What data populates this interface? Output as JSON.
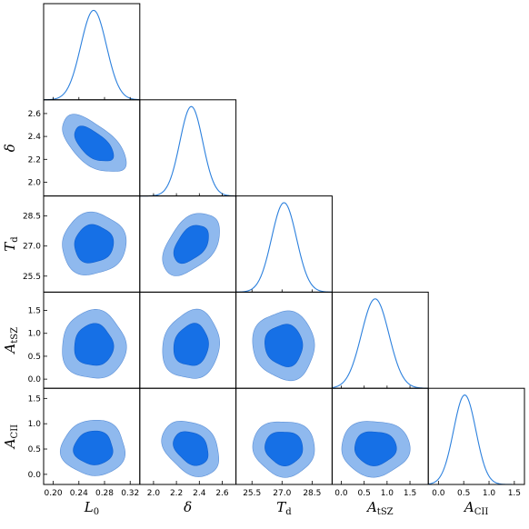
{
  "chart_data": {
    "type": "corner",
    "colors": {
      "outer": "#8fb9ee",
      "inner": "#1670e6",
      "line": "#2c80dd"
    },
    "grid": false,
    "parameters": [
      {
        "symbol": "L",
        "subscript": "0",
        "mean": 0.263,
        "sigma": 0.02,
        "range": [
          0.185,
          0.335
        ],
        "ticks": [
          0.2,
          0.24,
          0.28,
          0.32
        ],
        "tick_labels": [
          "0.20",
          "0.24",
          "0.28",
          "0.32"
        ]
      },
      {
        "symbol": "δ",
        "subscript": "",
        "mean": 2.33,
        "sigma": 0.1,
        "range": [
          1.88,
          2.72
        ],
        "ticks": [
          2.0,
          2.2,
          2.4,
          2.6
        ],
        "tick_labels": [
          "2.0",
          "2.2",
          "2.4",
          "2.6"
        ]
      },
      {
        "symbol": "T",
        "subscript": "d",
        "mean": 27.1,
        "sigma": 0.62,
        "range": [
          24.7,
          29.5
        ],
        "ticks": [
          25.5,
          27.0,
          28.5
        ],
        "tick_labels": [
          "25.5",
          "27.0",
          "28.5"
        ]
      },
      {
        "symbol": "A",
        "subscript": "tSZ",
        "mean": 0.74,
        "sigma": 0.3,
        "range": [
          -0.2,
          1.9
        ],
        "ticks": [
          0.0,
          0.5,
          1.0,
          1.5
        ],
        "tick_labels": [
          "0.0",
          "0.5",
          "1.0",
          "1.5"
        ]
      },
      {
        "symbol": "A",
        "subscript": "CII",
        "mean": 0.52,
        "sigma": 0.22,
        "range": [
          -0.2,
          1.7
        ],
        "ticks": [
          0.0,
          0.5,
          1.0,
          1.5
        ],
        "tick_labels": [
          "0.0",
          "0.5",
          "1.0",
          "1.5"
        ]
      }
    ],
    "correlations": [
      [
        1.0,
        -0.6,
        0.05,
        0.0,
        0.0
      ],
      [
        -0.6,
        1.0,
        0.45,
        0.1,
        -0.3
      ],
      [
        0.05,
        0.45,
        1.0,
        -0.05,
        -0.05
      ],
      [
        0.0,
        0.1,
        -0.05,
        1.0,
        0.0
      ],
      [
        0.0,
        -0.3,
        -0.05,
        0.0,
        1.0
      ]
    ],
    "contour_levels_sigma": [
      1.52,
      2.49
    ]
  }
}
